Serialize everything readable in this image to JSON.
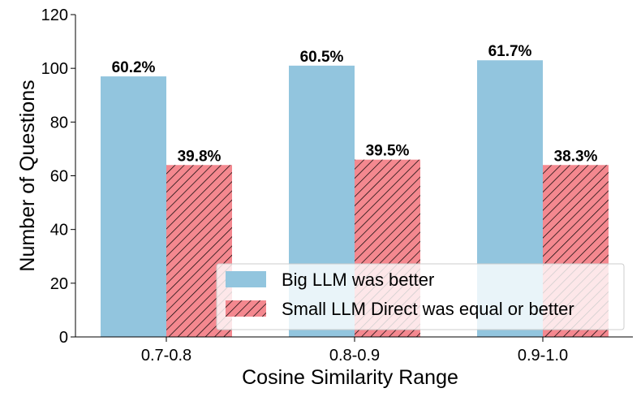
{
  "chart_data": {
    "type": "bar",
    "title": "",
    "xlabel": "Cosine Similarity Range",
    "ylabel": "Number of Questions",
    "categories": [
      "0.7-0.8",
      "0.8-0.9",
      "0.9-1.0"
    ],
    "ylim": [
      0,
      120
    ],
    "yticks": [
      0,
      20,
      40,
      60,
      80,
      100,
      120
    ],
    "ytick_labels": [
      "0",
      "20",
      "40",
      "60",
      "80",
      "100",
      "120"
    ],
    "grid": false,
    "legend_position": "bottom-right",
    "series": [
      {
        "name": "Big LLM was better",
        "values": [
          97,
          101,
          103
        ],
        "labels": [
          "60.2%",
          "60.5%",
          "61.7%"
        ],
        "color": "#92c5de",
        "hatch": false
      },
      {
        "name": "Small LLM Direct was equal or better",
        "values": [
          64,
          66,
          64
        ],
        "labels": [
          "39.8%",
          "39.5%",
          "38.3%"
        ],
        "color": "#f4888f",
        "hatch": true
      }
    ]
  }
}
